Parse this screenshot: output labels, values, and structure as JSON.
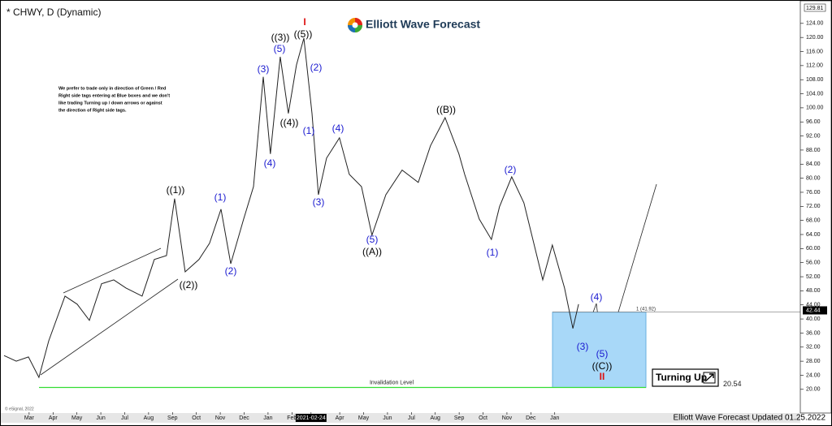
{
  "chart_data": {
    "type": "line",
    "title": "* CHWY, D (Dynamic)",
    "logo_text": "Elliott Wave Forecast",
    "footer": "Elliott Wave Forecast Updated 01.25.2022",
    "copyright": "© eSignal, 2022",
    "note_lines": [
      "We prefer to trade only in direction of Green / Red",
      "Right side tags entering at Blue boxes and we don't",
      "like trading Turning up / down arrows or against",
      "the direction of Right side tags."
    ],
    "color": "#222222",
    "x": [
      -1.05,
      -0.54,
      -0.03,
      0.41,
      0.82,
      1.5,
      2.01,
      2.52,
      3.03,
      3.54,
      4.05,
      4.73,
      5.24,
      5.75,
      6.09,
      6.53,
      7.11,
      7.55,
      8.03,
      8.44,
      8.98,
      9.39,
      9.8,
      10.1,
      10.51,
      10.85,
      11.19,
      11.5,
      11.84,
      12.11,
      12.45,
      12.99,
      13.4,
      13.91,
      14.35,
      14.93,
      15.61,
      16.29,
      16.8,
      17.41,
      17.99,
      18.23,
      18.84,
      19.35,
      19.69,
      20.2,
      20.71,
      21.5,
      21.9,
      22.41,
      22.76,
      23.0
    ],
    "values": [
      29.6,
      28.0,
      29.2,
      23.4,
      33.8,
      46.5,
      44.2,
      39.6,
      50.0,
      51.1,
      48.8,
      46.5,
      56.9,
      58.0,
      74.2,
      53.4,
      56.9,
      61.5,
      71.2,
      55.7,
      68.4,
      77.6,
      108.8,
      86.9,
      114.5,
      98.4,
      112.2,
      119.8,
      98.4,
      75.3,
      85.7,
      91.5,
      81.1,
      77.6,
      63.8,
      75.3,
      82.3,
      78.8,
      89.2,
      97.2,
      86.9,
      81.1,
      68.4,
      62.6,
      71.9,
      80.4,
      73.0,
      51.1,
      61.0,
      48.8,
      37.3,
      44.2
    ],
    "xlim": [
      -1.22,
      32.28
    ],
    "ylim": [
      13.5,
      128.8
    ],
    "xticks": [
      {
        "value": 0,
        "label": "Mar"
      },
      {
        "value": 1,
        "label": "Apr"
      },
      {
        "value": 2,
        "label": "May"
      },
      {
        "value": 3,
        "label": "Jun"
      },
      {
        "value": 4,
        "label": "Jul"
      },
      {
        "value": 5,
        "label": "Aug"
      },
      {
        "value": 6,
        "label": "Sep"
      },
      {
        "value": 7,
        "label": "Oct"
      },
      {
        "value": 8,
        "label": "Nov"
      },
      {
        "value": 9,
        "label": "Dec"
      },
      {
        "value": 10,
        "label": "Jan"
      },
      {
        "value": 11,
        "label": "Feb"
      },
      {
        "value": 11.8,
        "label": "2021-02-24"
      },
      {
        "value": 13,
        "label": "Apr"
      },
      {
        "value": 14,
        "label": "May"
      },
      {
        "value": 15,
        "label": "Jun"
      },
      {
        "value": 16,
        "label": "Jul"
      },
      {
        "value": 17,
        "label": "Aug"
      },
      {
        "value": 18,
        "label": "Sep"
      },
      {
        "value": 19,
        "label": "Oct"
      },
      {
        "value": 20,
        "label": "Nov"
      },
      {
        "value": 21,
        "label": "Dec"
      },
      {
        "value": 22,
        "label": "Jan"
      }
    ],
    "yticks": [
      {
        "value": 20,
        "label": "20.00"
      },
      {
        "value": 24,
        "label": "24.00"
      },
      {
        "value": 28,
        "label": "28.00"
      },
      {
        "value": 32,
        "label": "32.00"
      },
      {
        "value": 36,
        "label": "36.00"
      },
      {
        "value": 40,
        "label": "40.00"
      },
      {
        "value": 44,
        "label": "44.00"
      },
      {
        "value": 48,
        "label": "48.00"
      },
      {
        "value": 52,
        "label": "52.00"
      },
      {
        "value": 56,
        "label": "56.00"
      },
      {
        "value": 60,
        "label": "60.00"
      },
      {
        "value": 64,
        "label": "64.00"
      },
      {
        "value": 68,
        "label": "68.00"
      },
      {
        "value": 72,
        "label": "72.00"
      },
      {
        "value": 76,
        "label": "76.00"
      },
      {
        "value": 80,
        "label": "80.00"
      },
      {
        "value": 84,
        "label": "84.00"
      },
      {
        "value": 88,
        "label": "88.00"
      },
      {
        "value": 92,
        "label": "92.00"
      },
      {
        "value": 96,
        "label": "96.00"
      },
      {
        "value": 100,
        "label": "100.00"
      },
      {
        "value": 104,
        "label": "104.00"
      },
      {
        "value": 108,
        "label": "108.00"
      },
      {
        "value": 112,
        "label": "112.00"
      },
      {
        "value": 116,
        "label": "116.00"
      },
      {
        "value": 120,
        "label": "120.00"
      },
      {
        "value": 124,
        "label": "124.00"
      }
    ],
    "axis_top": 129.81,
    "last_price": 42.44,
    "blue_box": {
      "top": 41.92,
      "bottom": 20.54,
      "label": "1 (41.92)",
      "color": "#a8d8f8"
    },
    "invalidation": {
      "value": 20.54,
      "label": "Invalidation Level",
      "color": "#33dd33"
    },
    "turning_label": "Turning Up",
    "wave_labels": [
      {
        "text": "((1))",
        "color": "#000000"
      },
      {
        "text": "((2))",
        "color": "#000000"
      },
      {
        "text": "(1)",
        "color": "#1a1ad0"
      },
      {
        "text": "(2)",
        "color": "#1a1ad0"
      },
      {
        "text": "(3)",
        "color": "#1a1ad0"
      },
      {
        "text": "(4)",
        "color": "#1a1ad0"
      },
      {
        "text": "(5)",
        "color": "#1a1ad0"
      },
      {
        "text": "((3))",
        "color": "#000000"
      },
      {
        "text": "((4))",
        "color": "#000000"
      },
      {
        "text": "((5))",
        "color": "#000000"
      },
      {
        "text": "(2)",
        "color": "#1a1ad0"
      },
      {
        "text": "(1)",
        "color": "#1a1ad0"
      },
      {
        "text": "(3)",
        "color": "#1a1ad0"
      },
      {
        "text": "(4)",
        "color": "#1a1ad0"
      },
      {
        "text": "(5)",
        "color": "#1a1ad0"
      },
      {
        "text": "((A))",
        "color": "#000000"
      },
      {
        "text": "((B))",
        "color": "#000000"
      },
      {
        "text": "(2)",
        "color": "#1a1ad0"
      },
      {
        "text": "(1)",
        "color": "#1a1ad0"
      },
      {
        "text": "(4)",
        "color": "#1a1ad0"
      },
      {
        "text": "(3)",
        "color": "#1a1ad0"
      },
      {
        "text": "(5)",
        "color": "#1a1ad0"
      },
      {
        "text": "((C))",
        "color": "#000000"
      },
      {
        "text": "I",
        "color": "#dd1111"
      },
      {
        "text": "II",
        "color": "#dd1111"
      }
    ]
  }
}
